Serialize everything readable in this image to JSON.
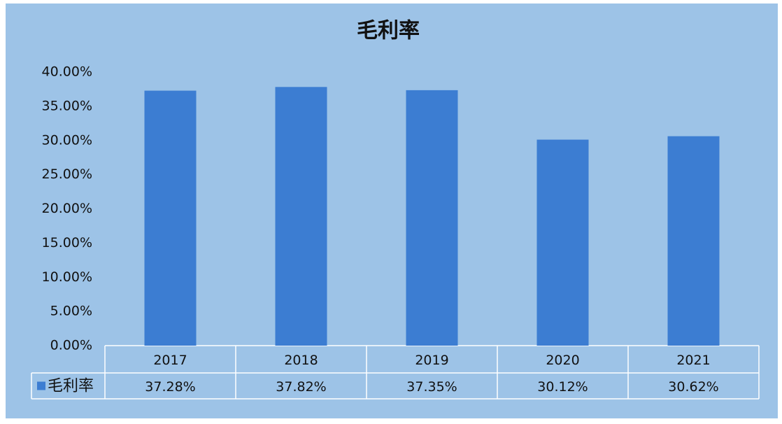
{
  "chart_data": {
    "type": "bar",
    "title": "毛利率",
    "categories": [
      "2017",
      "2018",
      "2019",
      "2020",
      "2021"
    ],
    "series": [
      {
        "name": "毛利率",
        "color": "#3c7dd2",
        "values": [
          37.28,
          37.82,
          37.35,
          30.12,
          30.62
        ],
        "value_labels": [
          "37.28%",
          "37.82%",
          "37.35%",
          "30.12%",
          "30.62%"
        ]
      }
    ],
    "ylim": [
      0,
      40
    ],
    "yticks": [
      {
        "value": 0,
        "label": "0.00%"
      },
      {
        "value": 5,
        "label": "5.00%"
      },
      {
        "value": 10,
        "label": "10.00%"
      },
      {
        "value": 15,
        "label": "15.00%"
      },
      {
        "value": 20,
        "label": "20.00%"
      },
      {
        "value": 25,
        "label": "25.00%"
      },
      {
        "value": 30,
        "label": "30.00%"
      },
      {
        "value": 35,
        "label": "35.00%"
      },
      {
        "value": 40,
        "label": "40.00%"
      }
    ],
    "grid": false
  }
}
